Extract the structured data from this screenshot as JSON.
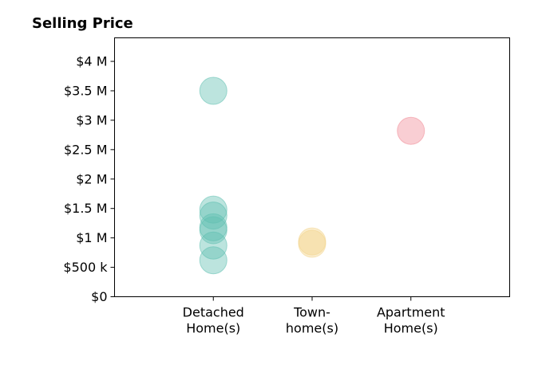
{
  "chart_data": {
    "type": "scatter",
    "title": "Selling Price",
    "xlabel": "",
    "ylabel": "",
    "categories": [
      [
        "Detached",
        "Home(s)"
      ],
      [
        "Town-",
        "home(s)"
      ],
      [
        "Apartment",
        "Home(s)"
      ]
    ],
    "xlim": [
      -1,
      3
    ],
    "ylim": [
      0,
      4400000
    ],
    "yticks": [
      0,
      500000,
      1000000,
      1500000,
      2000000,
      2500000,
      3000000,
      3500000,
      4000000
    ],
    "ytick_labels": [
      "$0",
      "$500 k",
      "$1 M",
      "$1.5 M",
      "$2 M",
      "$2.5 M",
      "$3 M",
      "$3.5 M",
      "$4 M"
    ],
    "grid": false,
    "series": [
      {
        "category_index": 0,
        "color": "#5fbfb1",
        "values": [
          3500000,
          1480000,
          1380000,
          1180000,
          1130000,
          870000,
          620000
        ]
      },
      {
        "category_index": 1,
        "color": "#f2d48a",
        "values": [
          940000,
          900000
        ]
      },
      {
        "category_index": 2,
        "color": "#f08a96",
        "values": [
          2820000
        ]
      }
    ]
  }
}
